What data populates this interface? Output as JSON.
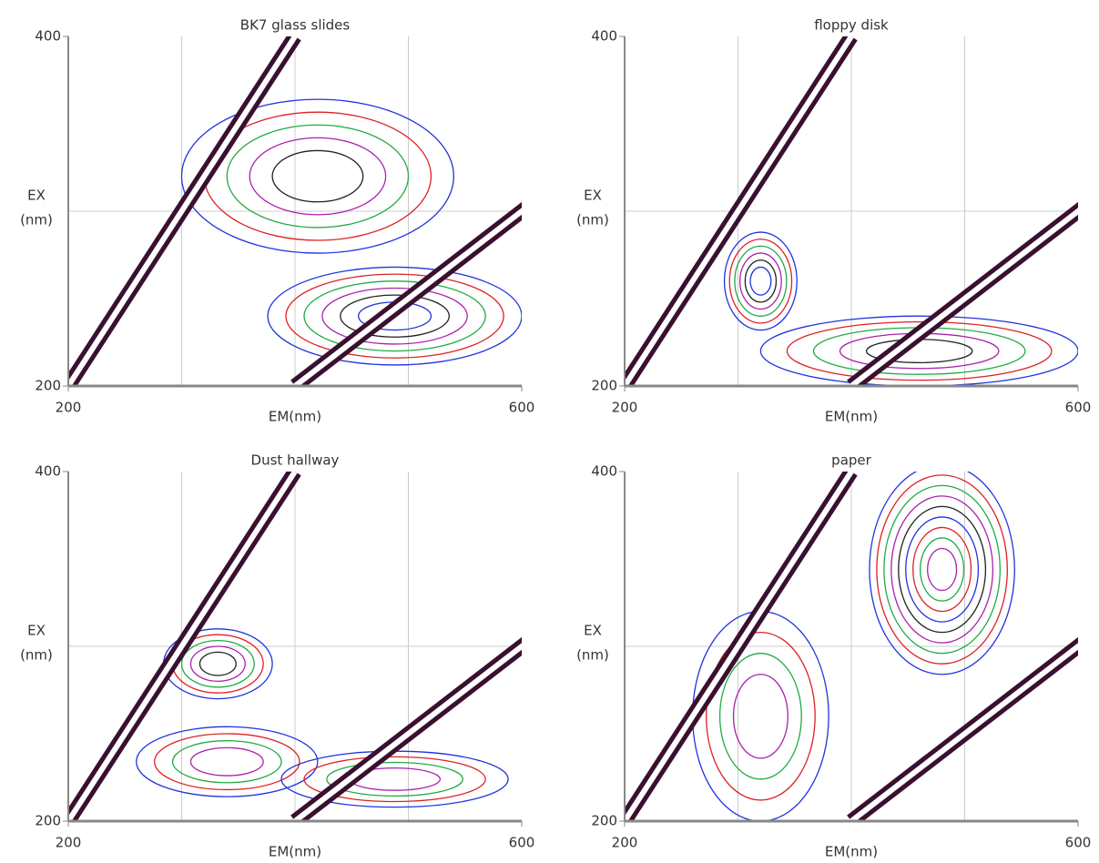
{
  "chart_data": [
    {
      "type": "contour",
      "title": "BK7 glass slides",
      "xlabel": "EM(nm)",
      "ylabel": [
        "EX",
        "(nm)"
      ],
      "xlim": [
        200,
        600
      ],
      "ylim": [
        200,
        400
      ],
      "xticks": [
        200,
        600
      ],
      "yticks": [
        200,
        400
      ],
      "xgrid": [
        300,
        400,
        500
      ],
      "ygrid": [
        300
      ]
    },
    {
      "type": "contour",
      "title": "floppy disk",
      "xlabel": "EM(nm)",
      "ylabel": [
        "EX",
        "(nm)"
      ],
      "xlim": [
        200,
        600
      ],
      "ylim": [
        200,
        400
      ],
      "xticks": [
        200,
        600
      ],
      "yticks": [
        200,
        400
      ],
      "xgrid": [
        300,
        400,
        500
      ],
      "ygrid": [
        300
      ]
    },
    {
      "type": "contour",
      "title": "Dust hallway",
      "xlabel": "EM(nm)",
      "ylabel": [
        "EX",
        "(nm)"
      ],
      "xlim": [
        200,
        600
      ],
      "ylim": [
        200,
        400
      ],
      "xticks": [
        200,
        600
      ],
      "yticks": [
        200,
        400
      ],
      "xgrid": [
        300,
        400,
        500
      ],
      "ygrid": [
        300
      ]
    },
    {
      "type": "contour",
      "title": "paper",
      "xlabel": "EM(nm)",
      "ylabel": [
        "EX",
        "(nm)"
      ],
      "xlim": [
        200,
        600
      ],
      "ylim": [
        200,
        400
      ],
      "xticks": [
        200,
        600
      ],
      "yticks": [
        200,
        400
      ],
      "xgrid": [
        300,
        400,
        500
      ],
      "ygrid": [
        300
      ]
    }
  ]
}
